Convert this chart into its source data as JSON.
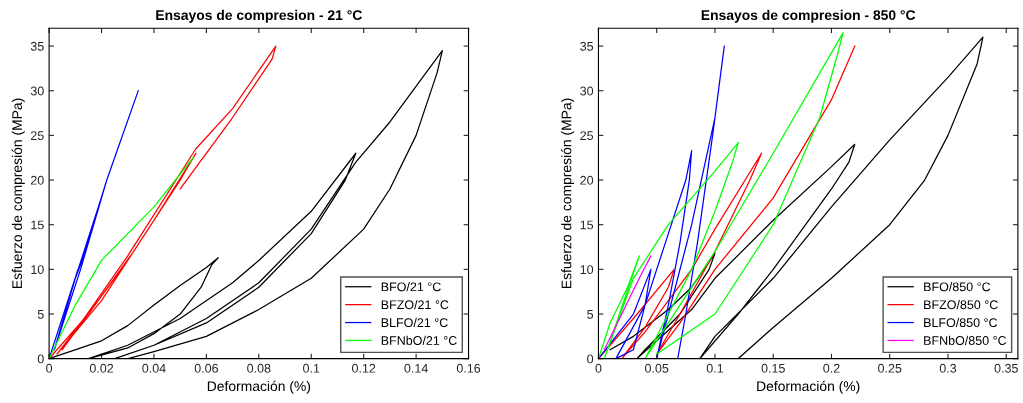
{
  "chart_data": [
    {
      "type": "line",
      "title": "Ensayos de compresion - 21 °C",
      "xlabel": "Deformación (%)",
      "ylabel": "Esfuerzo de compresión (MPa)",
      "xlim": [
        0,
        0.16
      ],
      "ylim": [
        0,
        37
      ],
      "xticks": [
        0,
        0.02,
        0.04,
        0.06,
        0.08,
        0.1,
        0.12,
        0.14,
        0.16
      ],
      "yticks": [
        0,
        5,
        10,
        15,
        20,
        25,
        30,
        35
      ],
      "grid": false,
      "legend": "bottom right",
      "series": [
        {
          "name": "BFO/21 °C",
          "color": "#000000",
          "x": [
            0,
            0.02,
            0.03,
            0.04,
            0.05,
            0.06,
            0.0645,
            0.062,
            0.058,
            0.05,
            0.04,
            0.03,
            0.015,
            0.03,
            0.05,
            0.07,
            0.08,
            0.1,
            0.117,
            0.113,
            0.1,
            0.08,
            0.06,
            0.04,
            0.025,
            0.04,
            0.06,
            0.08,
            0.1,
            0.117,
            0.13,
            0.15,
            0.148,
            0.14,
            0.13,
            0.12,
            0.1,
            0.08,
            0.06,
            0.04,
            0.03
          ],
          "values": [
            0,
            2,
            3.7,
            6,
            8.2,
            10.2,
            11.3,
            10.5,
            8,
            5,
            2.8,
            1.2,
            0,
            1.5,
            4.5,
            8.5,
            11,
            16.5,
            23,
            20,
            14,
            8,
            4,
            1.5,
            0,
            1.5,
            4.5,
            8.5,
            14.5,
            22,
            26.5,
            34.5,
            32,
            25,
            19,
            14.5,
            9,
            5.5,
            2.5,
            0.8,
            0
          ]
        },
        {
          "name": "BFZO/21 °C",
          "color": "#ff0000",
          "x": [
            0,
            0.015,
            0.031,
            0.02,
            0.003,
            0.02,
            0.04,
            0.056,
            0.05,
            0.03,
            0.005,
            0.03,
            0.056,
            0.07,
            0.0865,
            0.085,
            0.07,
            0.05
          ],
          "values": [
            0,
            5,
            11.5,
            7,
            0.5,
            6.5,
            15.5,
            23,
            20,
            11,
            1,
            11.5,
            23.5,
            28,
            35,
            33.5,
            27,
            19
          ]
        },
        {
          "name": "BLFO/21 °C",
          "color": "#0000ff",
          "x": [
            0,
            0.011,
            0.01,
            0.002,
            0.012,
            0.022,
            0.021,
            0.01,
            0.012,
            0.022,
            0.034
          ],
          "values": [
            0,
            10,
            9,
            1,
            10,
            20,
            19,
            9,
            10.5,
            20,
            30
          ]
        },
        {
          "name": "BFNbO/21 °C",
          "color": "#00ff00",
          "x": [
            0,
            0.01,
            0.02,
            0.04,
            0.055
          ],
          "values": [
            0,
            6,
            11,
            17,
            22.5
          ]
        }
      ]
    },
    {
      "type": "line",
      "title": "Ensayos de compresion - 850 °C",
      "xlabel": "Deformación (%)",
      "ylabel": "Esfuerzo de compresión (MPa)",
      "xlim": [
        0,
        0.36
      ],
      "ylim": [
        0,
        37
      ],
      "xticks": [
        0,
        0.05,
        0.1,
        0.15,
        0.2,
        0.25,
        0.3,
        0.35
      ],
      "yticks": [
        0,
        5,
        10,
        15,
        20,
        25,
        30,
        35
      ],
      "grid": false,
      "legend": "bottom right",
      "series": [
        {
          "name": "BFO/850 °C",
          "color": "#000000",
          "x": [
            0.01,
            0.03,
            0.06,
            0.08,
            0.1,
            0.095,
            0.07,
            0.04,
            0.033,
            0.05,
            0.08,
            0.1,
            0.15,
            0.2,
            0.22,
            0.215,
            0.2,
            0.15,
            0.12,
            0.087,
            0.1,
            0.15,
            0.2,
            0.25,
            0.3,
            0.33,
            0.325,
            0.3,
            0.28,
            0.25,
            0.2,
            0.15,
            0.12
          ],
          "values": [
            1,
            2.5,
            5.5,
            8,
            11.8,
            10,
            5,
            1,
            0,
            2,
            5.5,
            9,
            15.5,
            21.5,
            24,
            22,
            19,
            10,
            5,
            0,
            2.5,
            9,
            17,
            24.5,
            31.5,
            36,
            33,
            25,
            20,
            15,
            9,
            3.5,
            0
          ]
        },
        {
          "name": "BFZO/850 °C",
          "color": "#ff0000",
          "x": [
            0,
            0.03,
            0.065,
            0.06,
            0.04,
            0.02,
            0.04,
            0.08,
            0.1,
            0.14,
            0.13,
            0.1,
            0.07,
            0.05,
            0.07,
            0.1,
            0.15,
            0.2,
            0.22
          ],
          "values": [
            0,
            4.5,
            10,
            8,
            3.5,
            0,
            3,
            10,
            14.5,
            23,
            20,
            12,
            5,
            0.5,
            4,
            10,
            18,
            29,
            35
          ]
        },
        {
          "name": "BLFO/850 °C",
          "color": "#0000ff",
          "x": [
            0,
            0.03,
            0.045,
            0.04,
            0.03,
            0.015,
            0.04,
            0.06,
            0.075,
            0.08,
            0.078,
            0.07,
            0.06,
            0.05,
            0.06,
            0.08,
            0.1,
            0.108,
            0.105,
            0.098,
            0.085,
            0.075,
            0.068
          ],
          "values": [
            0,
            5,
            10,
            6,
            1,
            0,
            6,
            14,
            20,
            23.3,
            20,
            13,
            6,
            0,
            5,
            15,
            27,
            35,
            32,
            25,
            13,
            5,
            0
          ]
        },
        {
          "color": "#00ff00",
          "x": [
            0,
            0.01,
            0.025,
            0.035,
            0.005,
            0.03,
            0.06,
            0.1,
            0.12,
            0.115,
            0.1,
            0.08,
            0.06,
            0.04,
            0.06,
            0.1,
            0.15,
            0.21,
            0.205,
            0.19,
            0.17,
            0.15,
            0.1,
            0.05
          ],
          "values": [
            0,
            4,
            8,
            11.5,
            0,
            9,
            15,
            21,
            24.2,
            22,
            16.5,
            10,
            5,
            0,
            4,
            12,
            23,
            36.5,
            34,
            27,
            21,
            15,
            5,
            0.5
          ]
        },
        {
          "name": "BFNbO/850 °C",
          "color": "#ff00ff",
          "x": [
            0.005,
            0.02,
            0.035,
            0.045
          ],
          "values": [
            1,
            5,
            9,
            11.5
          ]
        }
      ]
    }
  ]
}
